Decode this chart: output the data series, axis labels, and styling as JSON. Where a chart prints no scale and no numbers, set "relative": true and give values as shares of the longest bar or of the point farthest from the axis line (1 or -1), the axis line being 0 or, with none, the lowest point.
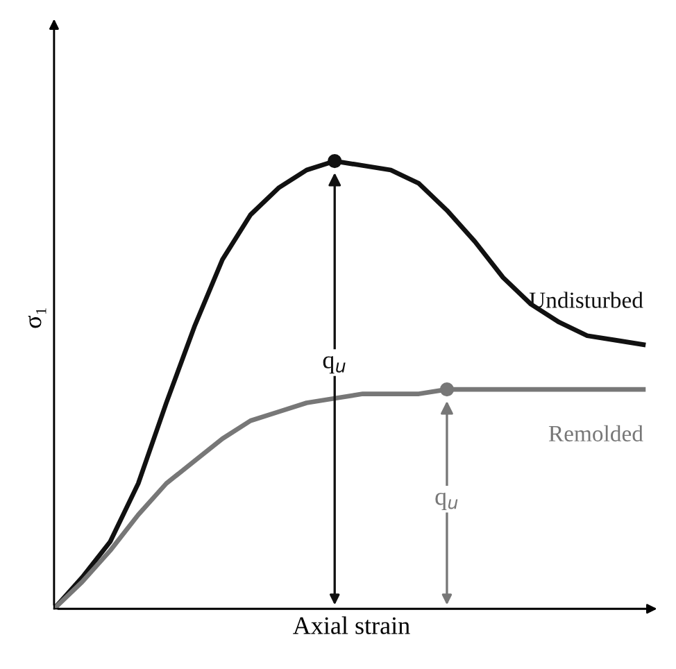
{
  "chart_data": {
    "type": "line",
    "relative": true,
    "xlabel": "Axial strain",
    "ylabel": "σ₁",
    "tick_labels": false,
    "legend": false,
    "marker": "none",
    "categories": [
      null,
      null,
      null,
      null,
      null,
      null,
      null,
      null,
      null,
      null,
      null,
      null,
      null,
      null,
      null,
      null,
      null,
      null,
      null,
      null,
      null,
      null
    ],
    "series": [
      {
        "name": "Undisturbed",
        "color": "#111111",
        "values": [
          0,
          0.07,
          0.15,
          0.28,
          0.46,
          0.63,
          0.78,
          0.88,
          0.94,
          0.98,
          1.0,
          0.99,
          0.98,
          0.95,
          0.89,
          0.82,
          0.74,
          0.68,
          0.64,
          0.61,
          0.6,
          0.59
        ]
      },
      {
        "name": "Remolded",
        "color": "#777777",
        "values": [
          0,
          0.06,
          0.13,
          0.21,
          0.28,
          0.33,
          0.38,
          0.42,
          0.44,
          0.46,
          0.47,
          0.48,
          0.48,
          0.48,
          0.49,
          0.49,
          0.49,
          0.49,
          0.49,
          0.49,
          0.49,
          0.49
        ]
      }
    ],
    "annotations": [
      "q$_{u}$",
      "q$_{u}$"
    ]
  }
}
